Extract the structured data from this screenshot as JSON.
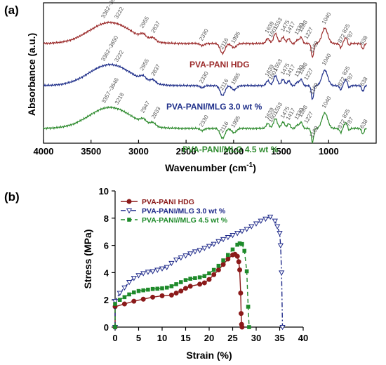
{
  "chart_data": [
    {
      "panel": "(a)",
      "type": "line",
      "xlabel": "Wavenumber (cm",
      "xlabel_sup": "-1",
      "xlabel_end": ")",
      "ylabel": "Absorbance (a.u.)",
      "xlim": [
        4000,
        500
      ],
      "x_ticks": [
        "4000",
        "3500",
        "3000",
        "2500",
        "2000",
        "1500",
        "1000"
      ],
      "series": [
        {
          "name": "PVA-PANI HDG",
          "color": "#9b2a2a",
          "peaks": [
            "3362~3650",
            "3222",
            "2955",
            "2837",
            "2330",
            "2116",
            "1995",
            "1639",
            "1601",
            "1553",
            "1475",
            "1417",
            "1330",
            "1288",
            "1227",
            "1169",
            "1040",
            "872",
            "825",
            "787",
            "638"
          ]
        },
        {
          "name": "PVA-PANI/MLG 3.0 wt %",
          "color": "#1f2f8a",
          "peaks": [
            "3362~3650",
            "3222",
            "2955",
            "2837",
            "2330",
            "2116",
            "1995",
            "1639",
            "1601",
            "1553",
            "1475",
            "1417",
            "1330",
            "1288",
            "1227",
            "1169",
            "1040",
            "872",
            "825",
            "787",
            "638"
          ]
        },
        {
          "name": "PVA-PANI/MLG 4.5 wt %",
          "color": "#2e8b2e",
          "peaks": [
            "3357~3646",
            "3218",
            "2947",
            "2833",
            "2330",
            "2116",
            "1995",
            "1639",
            "1601",
            "1553",
            "1475",
            "1417",
            "1330",
            "1288",
            "1227",
            "1169",
            "1040",
            "872",
            "825",
            "787",
            "638"
          ]
        }
      ]
    },
    {
      "panel": "(b)",
      "type": "line",
      "xlabel": "Strain (%)",
      "ylabel": "Stress (MPa)",
      "xlim": [
        0,
        40
      ],
      "ylim": [
        0,
        10
      ],
      "x_ticks": [
        "0",
        "5",
        "10",
        "15",
        "20",
        "25",
        "30",
        "35",
        "40"
      ],
      "y_ticks": [
        "0",
        "2",
        "4",
        "6",
        "8",
        "10"
      ],
      "legend_position": "top-left",
      "series": [
        {
          "name": "PVA-PANI HDG",
          "color": "#8b1a1a",
          "marker": "filled-circle",
          "dash": "solid",
          "x": [
            0,
            0,
            2,
            4,
            6,
            8,
            10,
            12,
            13,
            14,
            15,
            16,
            18,
            19,
            20,
            21,
            22,
            23,
            24,
            25,
            25.5,
            26,
            26.3,
            26.5,
            26.7,
            26.8,
            26.9,
            27
          ],
          "y": [
            0,
            1.5,
            1.7,
            1.9,
            2.05,
            2.2,
            2.3,
            2.35,
            2.5,
            2.65,
            2.85,
            3.0,
            3.15,
            3.25,
            3.5,
            3.85,
            4.2,
            4.6,
            5.0,
            5.3,
            5.35,
            5.2,
            4.8,
            4.2,
            2.5,
            1.0,
            0.2,
            0
          ]
        },
        {
          "name": "PVA-PANI/MLG 3.0 wt %",
          "color": "#1f2a8a",
          "marker": "open-triangle-down",
          "dash": "dash-dot",
          "x": [
            0,
            0,
            1,
            2,
            3,
            4,
            5,
            6,
            7,
            8,
            9,
            10,
            11,
            12,
            13,
            14,
            15,
            16,
            17,
            18,
            19,
            20,
            21,
            22,
            23,
            24,
            25,
            26,
            27,
            28,
            29,
            30,
            31,
            32,
            33,
            34,
            34.5,
            35,
            35.2,
            35.4,
            35.6
          ],
          "y": [
            0,
            1.9,
            2.5,
            2.9,
            3.3,
            3.6,
            3.8,
            3.95,
            4.05,
            4.1,
            4.2,
            4.3,
            4.4,
            4.7,
            4.95,
            5.1,
            5.25,
            5.4,
            5.55,
            5.65,
            5.8,
            5.95,
            6.1,
            6.3,
            6.45,
            6.6,
            6.75,
            6.9,
            7.05,
            7.2,
            7.4,
            7.6,
            7.8,
            7.95,
            8.1,
            7.8,
            7.4,
            6.9,
            6.0,
            4.0,
            0
          ]
        },
        {
          "name": "PVA-PANI//MLG 4.5 wt %",
          "color": "#1e8a2a",
          "marker": "filled-square",
          "dash": "dash",
          "x": [
            0,
            0,
            1,
            2,
            3,
            4,
            5,
            6,
            7,
            8,
            9,
            10,
            11,
            12,
            13,
            14,
            15,
            16,
            17,
            18,
            19,
            20,
            21,
            22,
            23,
            24,
            25,
            26,
            26.5,
            27,
            27.5,
            28,
            28.3,
            28.5
          ],
          "y": [
            0,
            1.7,
            2.0,
            2.2,
            2.4,
            2.55,
            2.65,
            2.7,
            2.75,
            2.8,
            2.82,
            2.85,
            2.9,
            3.0,
            3.15,
            3.3,
            3.45,
            3.55,
            3.6,
            3.65,
            3.75,
            3.95,
            4.2,
            4.5,
            4.9,
            5.3,
            5.7,
            6.05,
            6.15,
            6.1,
            5.6,
            4.1,
            1.5,
            0
          ]
        }
      ]
    }
  ]
}
